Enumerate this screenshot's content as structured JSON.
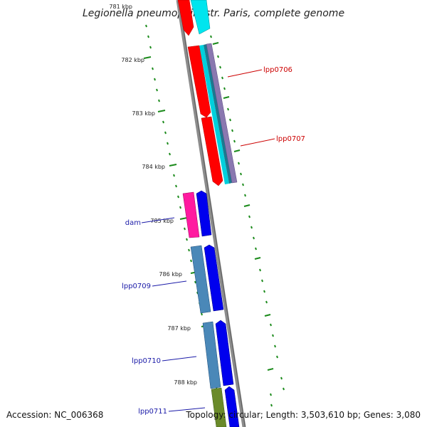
{
  "title": "Legionella pneumophila str. Paris, complete genome",
  "footer": {
    "accession": "Accession: NC_006368",
    "topology": "Topology: circular; Length: 3,503,610 bp; Genes: 3,080"
  },
  "ticks": [
    {
      "label": "781 kbp"
    },
    {
      "label": "782 kbp"
    },
    {
      "label": "783 kbp"
    },
    {
      "label": "784 kbp"
    },
    {
      "label": "785 kbp"
    },
    {
      "label": "786 kbp"
    },
    {
      "label": "787 kbp"
    },
    {
      "label": "788 kbp"
    }
  ],
  "gene_labels": [
    {
      "text": "lpp0706",
      "color": "#cc0000"
    },
    {
      "text": "lpp0707",
      "color": "#cc0000"
    },
    {
      "text": "dam",
      "color": "#1a1aa8"
    },
    {
      "text": "lpp0709",
      "color": "#1a1aa8"
    },
    {
      "text": "lpp0710",
      "color": "#1a1aa8"
    },
    {
      "text": "lpp0711",
      "color": "#1a1aa8"
    }
  ],
  "colors": {
    "backbone": "#7a7a7a",
    "tick_marks": "#1a8a1a",
    "red_gene": "#ff0000",
    "blue_gene": "#0000ee",
    "cyan_gene": "#00e5ee",
    "teal_gene": "#20a0a0",
    "purple_gene": "#7a6aa0",
    "steelblue_gene": "#4a88b8",
    "magenta_gene": "#ff1aa0",
    "olive_gene": "#6a8a2a"
  }
}
